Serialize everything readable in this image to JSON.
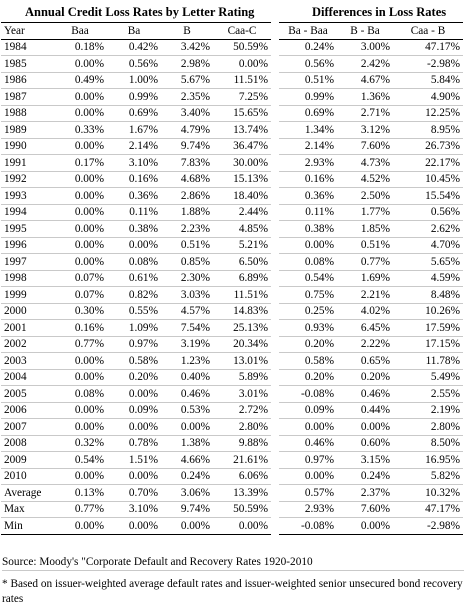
{
  "titles": {
    "left": "Annual Credit Loss Rates by Letter Rating",
    "right": "Differences in Loss Rates"
  },
  "headers": [
    "Year",
    "Baa",
    "Ba",
    "B",
    "Caa-C",
    "Ba - Baa",
    "B - Ba",
    "Caa - B"
  ],
  "rows": [
    {
      "year": "1984",
      "v": [
        "0.18%",
        "0.42%",
        "3.42%",
        "50.59%",
        "0.24%",
        "3.00%",
        "47.17%"
      ]
    },
    {
      "year": "1985",
      "v": [
        "0.00%",
        "0.56%",
        "2.98%",
        "0.00%",
        "0.56%",
        "2.42%",
        "-2.98%"
      ]
    },
    {
      "year": "1986",
      "v": [
        "0.49%",
        "1.00%",
        "5.67%",
        "11.51%",
        "0.51%",
        "4.67%",
        "5.84%"
      ]
    },
    {
      "year": "1987",
      "v": [
        "0.00%",
        "0.99%",
        "2.35%",
        "7.25%",
        "0.99%",
        "1.36%",
        "4.90%"
      ]
    },
    {
      "year": "1988",
      "v": [
        "0.00%",
        "0.69%",
        "3.40%",
        "15.65%",
        "0.69%",
        "2.71%",
        "12.25%"
      ]
    },
    {
      "year": "1989",
      "v": [
        "0.33%",
        "1.67%",
        "4.79%",
        "13.74%",
        "1.34%",
        "3.12%",
        "8.95%"
      ]
    },
    {
      "year": "1990",
      "v": [
        "0.00%",
        "2.14%",
        "9.74%",
        "36.47%",
        "2.14%",
        "7.60%",
        "26.73%"
      ]
    },
    {
      "year": "1991",
      "v": [
        "0.17%",
        "3.10%",
        "7.83%",
        "30.00%",
        "2.93%",
        "4.73%",
        "22.17%"
      ]
    },
    {
      "year": "1992",
      "v": [
        "0.00%",
        "0.16%",
        "4.68%",
        "15.13%",
        "0.16%",
        "4.52%",
        "10.45%"
      ]
    },
    {
      "year": "1993",
      "v": [
        "0.00%",
        "0.36%",
        "2.86%",
        "18.40%",
        "0.36%",
        "2.50%",
        "15.54%"
      ]
    },
    {
      "year": "1994",
      "v": [
        "0.00%",
        "0.11%",
        "1.88%",
        "2.44%",
        "0.11%",
        "1.77%",
        "0.56%"
      ]
    },
    {
      "year": "1995",
      "v": [
        "0.00%",
        "0.38%",
        "2.23%",
        "4.85%",
        "0.38%",
        "1.85%",
        "2.62%"
      ]
    },
    {
      "year": "1996",
      "v": [
        "0.00%",
        "0.00%",
        "0.51%",
        "5.21%",
        "0.00%",
        "0.51%",
        "4.70%"
      ]
    },
    {
      "year": "1997",
      "v": [
        "0.00%",
        "0.08%",
        "0.85%",
        "6.50%",
        "0.08%",
        "0.77%",
        "5.65%"
      ]
    },
    {
      "year": "1998",
      "v": [
        "0.07%",
        "0.61%",
        "2.30%",
        "6.89%",
        "0.54%",
        "1.69%",
        "4.59%"
      ]
    },
    {
      "year": "1999",
      "v": [
        "0.07%",
        "0.82%",
        "3.03%",
        "11.51%",
        "0.75%",
        "2.21%",
        "8.48%"
      ]
    },
    {
      "year": "2000",
      "v": [
        "0.30%",
        "0.55%",
        "4.57%",
        "14.83%",
        "0.25%",
        "4.02%",
        "10.26%"
      ]
    },
    {
      "year": "2001",
      "v": [
        "0.16%",
        "1.09%",
        "7.54%",
        "25.13%",
        "0.93%",
        "6.45%",
        "17.59%"
      ]
    },
    {
      "year": "2002",
      "v": [
        "0.77%",
        "0.97%",
        "3.19%",
        "20.34%",
        "0.20%",
        "2.22%",
        "17.15%"
      ]
    },
    {
      "year": "2003",
      "v": [
        "0.00%",
        "0.58%",
        "1.23%",
        "13.01%",
        "0.58%",
        "0.65%",
        "11.78%"
      ]
    },
    {
      "year": "2004",
      "v": [
        "0.00%",
        "0.20%",
        "0.40%",
        "5.89%",
        "0.20%",
        "0.20%",
        "5.49%"
      ]
    },
    {
      "year": "2005",
      "v": [
        "0.08%",
        "0.00%",
        "0.46%",
        "3.01%",
        "-0.08%",
        "0.46%",
        "2.55%"
      ]
    },
    {
      "year": "2006",
      "v": [
        "0.00%",
        "0.09%",
        "0.53%",
        "2.72%",
        "0.09%",
        "0.44%",
        "2.19%"
      ]
    },
    {
      "year": "2007",
      "v": [
        "0.00%",
        "0.00%",
        "0.00%",
        "2.80%",
        "0.00%",
        "0.00%",
        "2.80%"
      ]
    },
    {
      "year": "2008",
      "v": [
        "0.32%",
        "0.78%",
        "1.38%",
        "9.88%",
        "0.46%",
        "0.60%",
        "8.50%"
      ]
    },
    {
      "year": "2009",
      "v": [
        "0.54%",
        "1.51%",
        "4.66%",
        "21.61%",
        "0.97%",
        "3.15%",
        "16.95%"
      ]
    },
    {
      "year": "2010",
      "v": [
        "0.00%",
        "0.00%",
        "0.24%",
        "6.06%",
        "0.00%",
        "0.24%",
        "5.82%"
      ]
    }
  ],
  "summary": [
    {
      "label": "Average",
      "v": [
        "0.13%",
        "0.70%",
        "3.06%",
        "13.39%",
        "0.57%",
        "2.37%",
        "10.32%"
      ]
    },
    {
      "label": "Max",
      "v": [
        "0.77%",
        "3.10%",
        "9.74%",
        "50.59%",
        "2.93%",
        "7.60%",
        "47.17%"
      ]
    },
    {
      "label": "Min",
      "v": [
        "0.00%",
        "0.00%",
        "0.00%",
        "0.00%",
        "-0.08%",
        "0.00%",
        "-2.98%"
      ]
    }
  ],
  "source": "Source: Moody's \"Corporate Default and Recovery Rates 1920-2010",
  "note": "* Based on issuer-weighted average default rates and issuer-weighted senior unsecured bond recovery rates"
}
